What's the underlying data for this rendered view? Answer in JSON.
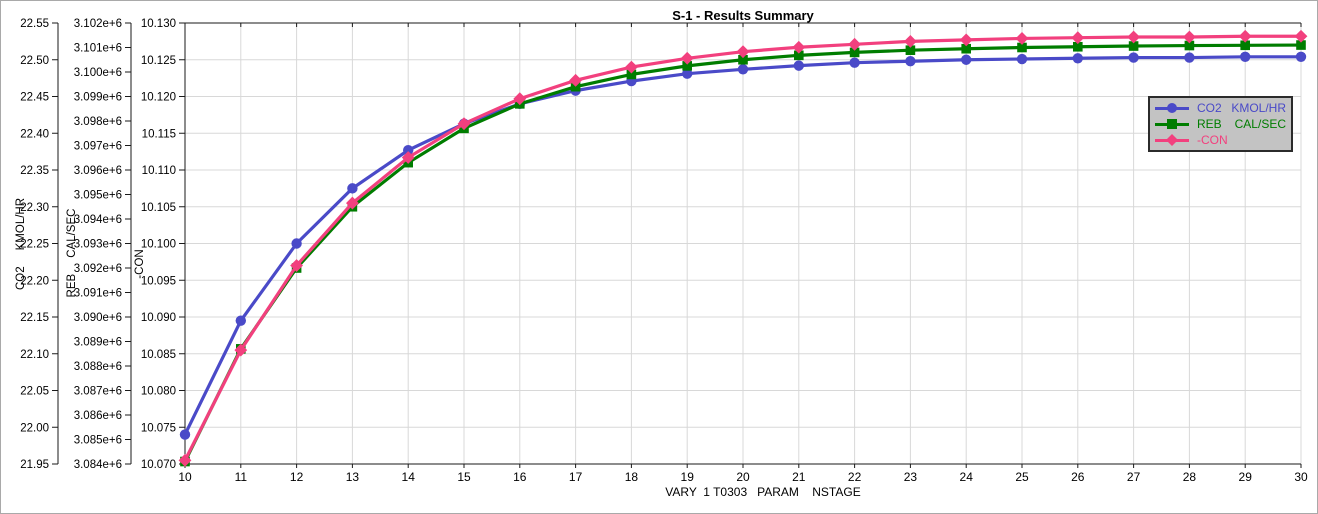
{
  "chart_data": {
    "type": "line",
    "title": "S-1 - Results Summary",
    "xlabel": "VARY  1 T0303   PARAM    NSTAGE",
    "x": [
      10,
      11,
      12,
      13,
      14,
      15,
      16,
      17,
      18,
      19,
      20,
      21,
      22,
      23,
      24,
      25,
      26,
      27,
      28,
      29,
      30
    ],
    "x_ticks": [
      "10",
      "11",
      "12",
      "13",
      "14",
      "15",
      "16",
      "17",
      "18",
      "19",
      "20",
      "21",
      "22",
      "23",
      "24",
      "25",
      "26",
      "27",
      "28",
      "29",
      "30"
    ],
    "xlim": [
      10,
      30
    ],
    "grid": true,
    "legend_position": "upper right",
    "colors": {
      "grid": "#d8d8d8",
      "axis": "#1a1a1a",
      "legend_bg": "#c3c3c3",
      "legend_border": "#2b2b2b"
    },
    "axes": {
      "co2": {
        "label": "CO2",
        "units": "KMOL/HR",
        "min": 21.95,
        "max": 22.55,
        "ticks": [
          "22.55",
          "22.50",
          "22.45",
          "22.40",
          "22.35",
          "22.30",
          "22.25",
          "22.20",
          "22.15",
          "22.10",
          "22.05",
          "22.00",
          "21.95"
        ]
      },
      "reb": {
        "label": "REB",
        "units": "CAL/SEC",
        "min": 3084000,
        "max": 3102000,
        "ticks": [
          "3.102e+6",
          "3.101e+6",
          "3.100e+6",
          "3.099e+6",
          "3.098e+6",
          "3.097e+6",
          "3.096e+6",
          "3.095e+6",
          "3.094e+6",
          "3.093e+6",
          "3.092e+6",
          "3.091e+6",
          "3.090e+6",
          "3.089e+6",
          "3.088e+6",
          "3.087e+6",
          "3.086e+6",
          "3.085e+6",
          "3.084e+6"
        ]
      },
      "con": {
        "label": "-CON",
        "units": "",
        "min": 10.07,
        "max": 10.13,
        "ticks": [
          "10.130",
          "10.125",
          "10.120",
          "10.115",
          "10.110",
          "10.105",
          "10.100",
          "10.095",
          "10.090",
          "10.085",
          "10.080",
          "10.075",
          "10.070"
        ]
      }
    },
    "series": [
      {
        "name": "CO2",
        "units": "KMOL/HR",
        "axis": "co2",
        "color": "#4a4ac8",
        "marker": "circle",
        "values": [
          21.99,
          22.145,
          22.25,
          22.325,
          22.377,
          22.413,
          22.44,
          22.458,
          22.471,
          22.481,
          22.487,
          22.492,
          22.496,
          22.498,
          22.5,
          22.501,
          22.502,
          22.503,
          22.503,
          22.504,
          22.504
        ]
      },
      {
        "name": "REB",
        "units": "CAL/SEC",
        "axis": "reb",
        "color": "#007d00",
        "marker": "square",
        "values": [
          3084100,
          3088700,
          3092000,
          3094500,
          3096300,
          3097700,
          3098700,
          3099400,
          3099900,
          3100250,
          3100500,
          3100680,
          3100800,
          3100890,
          3100950,
          3101000,
          3101030,
          3101060,
          3101080,
          3101090,
          3101100
        ]
      },
      {
        "name": "-CON",
        "units": "",
        "axis": "con",
        "color": "#f2407e",
        "marker": "diamond",
        "values": [
          10.0705,
          10.0855,
          10.097,
          10.1055,
          10.1117,
          10.1163,
          10.1197,
          10.1222,
          10.124,
          10.1252,
          10.1261,
          10.1267,
          10.1271,
          10.1275,
          10.1277,
          10.1279,
          10.128,
          10.1281,
          10.1281,
          10.1282,
          10.1282
        ]
      }
    ]
  }
}
